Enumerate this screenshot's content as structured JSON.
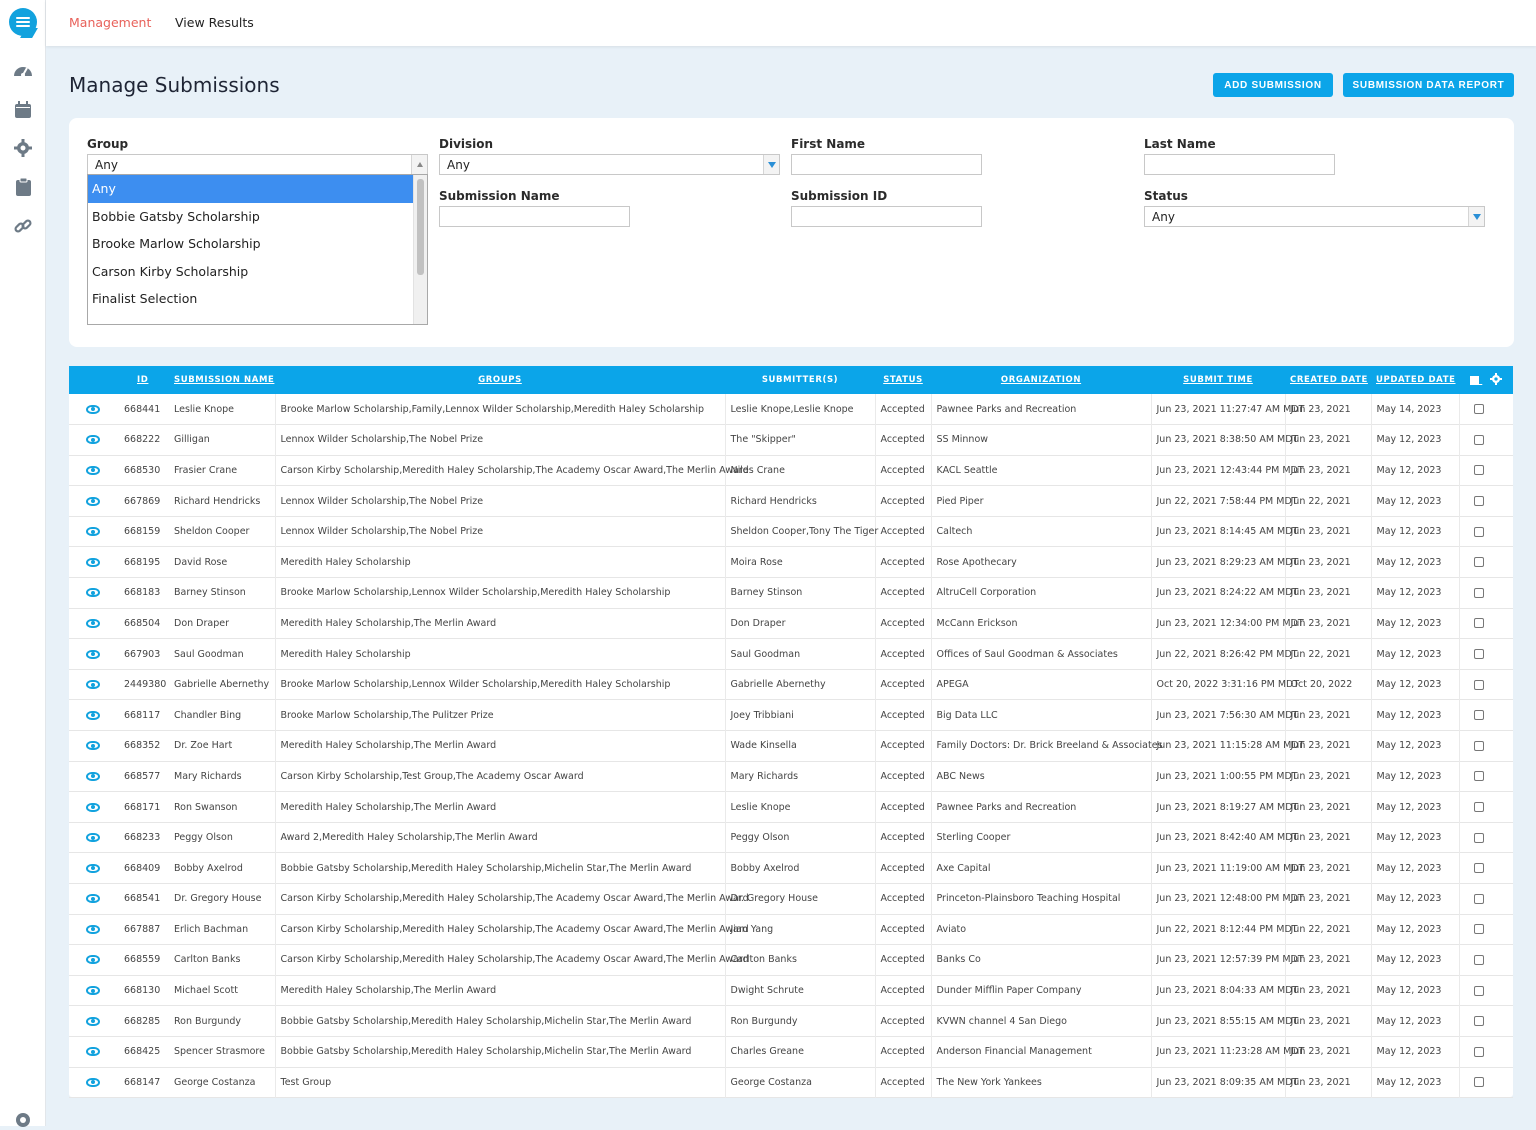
{
  "nav": {
    "tabs": [
      {
        "label": "Management",
        "active": true
      },
      {
        "label": "View Results",
        "active": false
      }
    ]
  },
  "sidebar": {
    "icons": [
      "dashboard-icon",
      "calendar-icon",
      "gear-icon",
      "clipboard-icon",
      "link-icon",
      "help-icon"
    ]
  },
  "page": {
    "title": "Manage Submissions",
    "add_button": "ADD SUBMISSION",
    "report_button": "SUBMISSION DATA REPORT"
  },
  "filters": {
    "group_label": "Group",
    "group_value": "Any",
    "group_options": [
      "Any",
      "Bobbie Gatsby Scholarship",
      "Brooke Marlow Scholarship",
      "Carson Kirby Scholarship",
      "Finalist Selection"
    ],
    "division_label": "Division",
    "division_value": "Any",
    "first_name_label": "First Name",
    "last_name_label": "Last Name",
    "submission_name_label": "Submission Name",
    "submission_id_label": "Submission ID",
    "status_label": "Status",
    "status_value": "Any"
  },
  "table": {
    "headers": {
      "id": "ID",
      "name": "SUBMISSION NAME",
      "groups": "GROUPS",
      "submitters": "SUBMITTER(S)",
      "status": "STATUS",
      "organization": "ORGANIZATION",
      "submit_time": "SUBMIT TIME",
      "created": "CREATED DATE",
      "updated": "UPDATED DATE"
    },
    "rows": [
      [
        "668441",
        "Leslie Knope",
        "Brooke Marlow Scholarship,Family,Lennox Wilder Scholarship,Meredith Haley Scholarship",
        "Leslie Knope,Leslie Knope",
        "Accepted",
        "Pawnee Parks and Recreation",
        "Jun 23, 2021 11:27:47 AM MDT",
        "Jun 23, 2021",
        "May 14, 2023"
      ],
      [
        "668222",
        "Gilligan",
        "Lennox Wilder Scholarship,The Nobel Prize",
        "The \"Skipper\"",
        "Accepted",
        "SS Minnow",
        "Jun 23, 2021 8:38:50 AM MDT",
        "Jun 23, 2021",
        "May 12, 2023"
      ],
      [
        "668530",
        "Frasier Crane",
        "Carson Kirby Scholarship,Meredith Haley Scholarship,The Academy Oscar Award,The Merlin Award",
        "Niles Crane",
        "Accepted",
        "KACL Seattle",
        "Jun 23, 2021 12:43:44 PM MDT",
        "Jun 23, 2021",
        "May 12, 2023"
      ],
      [
        "667869",
        "Richard Hendricks",
        "Lennox Wilder Scholarship,The Nobel Prize",
        "Richard Hendricks",
        "Accepted",
        "Pied Piper",
        "Jun 22, 2021 7:58:44 PM MDT",
        "Jun 22, 2021",
        "May 12, 2023"
      ],
      [
        "668159",
        "Sheldon Cooper",
        "Lennox Wilder Scholarship,The Nobel Prize",
        "Sheldon Cooper,Tony The Tiger",
        "Accepted",
        "Caltech",
        "Jun 23, 2021 8:14:45 AM MDT",
        "Jun 23, 2021",
        "May 12, 2023"
      ],
      [
        "668195",
        "David Rose",
        "Meredith Haley Scholarship",
        "Moira Rose",
        "Accepted",
        "Rose Apothecary",
        "Jun 23, 2021 8:29:23 AM MDT",
        "Jun 23, 2021",
        "May 12, 2023"
      ],
      [
        "668183",
        "Barney Stinson",
        "Brooke Marlow Scholarship,Lennox Wilder Scholarship,Meredith Haley Scholarship",
        "Barney Stinson",
        "Accepted",
        "AltruCell Corporation",
        "Jun 23, 2021 8:24:22 AM MDT",
        "Jun 23, 2021",
        "May 12, 2023"
      ],
      [
        "668504",
        "Don Draper",
        "Meredith Haley Scholarship,The Merlin Award",
        "Don Draper",
        "Accepted",
        "McCann Erickson",
        "Jun 23, 2021 12:34:00 PM MDT",
        "Jun 23, 2021",
        "May 12, 2023"
      ],
      [
        "667903",
        "Saul Goodman",
        "Meredith Haley Scholarship",
        "Saul Goodman",
        "Accepted",
        "Offices of Saul Goodman & Associates",
        "Jun 22, 2021 8:26:42 PM MDT",
        "Jun 22, 2021",
        "May 12, 2023"
      ],
      [
        "2449380",
        "Gabrielle Abernethy",
        "Brooke Marlow Scholarship,Lennox Wilder Scholarship,Meredith Haley Scholarship",
        "Gabrielle Abernethy",
        "Accepted",
        "APEGA",
        "Oct 20, 2022 3:31:16 PM MDT",
        "Oct 20, 2022",
        "May 12, 2023"
      ],
      [
        "668117",
        "Chandler Bing",
        "Brooke Marlow Scholarship,The Pulitzer Prize",
        "Joey Tribbiani",
        "Accepted",
        "Big Data LLC",
        "Jun 23, 2021 7:56:30 AM MDT",
        "Jun 23, 2021",
        "May 12, 2023"
      ],
      [
        "668352",
        "Dr. Zoe Hart",
        "Meredith Haley Scholarship,The Merlin Award",
        "Wade Kinsella",
        "Accepted",
        "Family Doctors: Dr. Brick Breeland & Associates",
        "Jun 23, 2021 11:15:28 AM MDT",
        "Jun 23, 2021",
        "May 12, 2023"
      ],
      [
        "668577",
        "Mary Richards",
        "Carson Kirby Scholarship,Test Group,The Academy Oscar Award",
        "Mary Richards",
        "Accepted",
        "ABC News",
        "Jun 23, 2021 1:00:55 PM MDT",
        "Jun 23, 2021",
        "May 12, 2023"
      ],
      [
        "668171",
        "Ron Swanson",
        "Meredith Haley Scholarship,The Merlin Award",
        "Leslie Knope",
        "Accepted",
        "Pawnee Parks and Recreation",
        "Jun 23, 2021 8:19:27 AM MDT",
        "Jun 23, 2021",
        "May 12, 2023"
      ],
      [
        "668233",
        "Peggy Olson",
        "Award 2,Meredith Haley Scholarship,The Merlin Award",
        "Peggy Olson",
        "Accepted",
        "Sterling Cooper",
        "Jun 23, 2021 8:42:40 AM MDT",
        "Jun 23, 2021",
        "May 12, 2023"
      ],
      [
        "668409",
        "Bobby Axelrod",
        "Bobbie Gatsby Scholarship,Meredith Haley Scholarship,Michelin Star,The Merlin Award",
        "Bobby Axelrod",
        "Accepted",
        "Axe Capital",
        "Jun 23, 2021 11:19:00 AM MDT",
        "Jun 23, 2021",
        "May 12, 2023"
      ],
      [
        "668541",
        "Dr. Gregory House",
        "Carson Kirby Scholarship,Meredith Haley Scholarship,The Academy Oscar Award,The Merlin Award",
        "Dr. Gregory House",
        "Accepted",
        "Princeton-Plainsboro Teaching Hospital",
        "Jun 23, 2021 12:48:00 PM MDT",
        "Jun 23, 2021",
        "May 12, 2023"
      ],
      [
        "667887",
        "Erlich Bachman",
        "Carson Kirby Scholarship,Meredith Haley Scholarship,The Academy Oscar Award,The Merlin Award",
        "Jian Yang",
        "Accepted",
        "Aviato",
        "Jun 22, 2021 8:12:44 PM MDT",
        "Jun 22, 2021",
        "May 12, 2023"
      ],
      [
        "668559",
        "Carlton Banks",
        "Carson Kirby Scholarship,Meredith Haley Scholarship,The Academy Oscar Award,The Merlin Award",
        "Carlton Banks",
        "Accepted",
        "Banks Co",
        "Jun 23, 2021 12:57:39 PM MDT",
        "Jun 23, 2021",
        "May 12, 2023"
      ],
      [
        "668130",
        "Michael Scott",
        "Meredith Haley Scholarship,The Merlin Award",
        "Dwight Schrute",
        "Accepted",
        "Dunder Mifflin Paper Company",
        "Jun 23, 2021 8:04:33 AM MDT",
        "Jun 23, 2021",
        "May 12, 2023"
      ],
      [
        "668285",
        "Ron Burgundy",
        "Bobbie Gatsby Scholarship,Meredith Haley Scholarship,Michelin Star,The Merlin Award",
        "Ron Burgundy",
        "Accepted",
        "KVWN channel 4 San Diego",
        "Jun 23, 2021 8:55:15 AM MDT",
        "Jun 23, 2021",
        "May 12, 2023"
      ],
      [
        "668425",
        "Spencer Strasmore",
        "Bobbie Gatsby Scholarship,Meredith Haley Scholarship,Michelin Star,The Merlin Award",
        "Charles Greane",
        "Accepted",
        "Anderson Financial Management",
        "Jun 23, 2021 11:23:28 AM MDT",
        "Jun 23, 2021",
        "May 12, 2023"
      ],
      [
        "668147",
        "George Costanza",
        "Test Group",
        "George Costanza",
        "Accepted",
        "The New York Yankees",
        "Jun 23, 2021 8:09:35 AM MDT",
        "Jun 23, 2021",
        "May 12, 2023"
      ]
    ]
  },
  "colors": {
    "accent": "#0ba5e9",
    "active_tab": "#e8615a",
    "page_bg": "#e8f1f8",
    "dropdown_selected": "#3d8ef0"
  }
}
